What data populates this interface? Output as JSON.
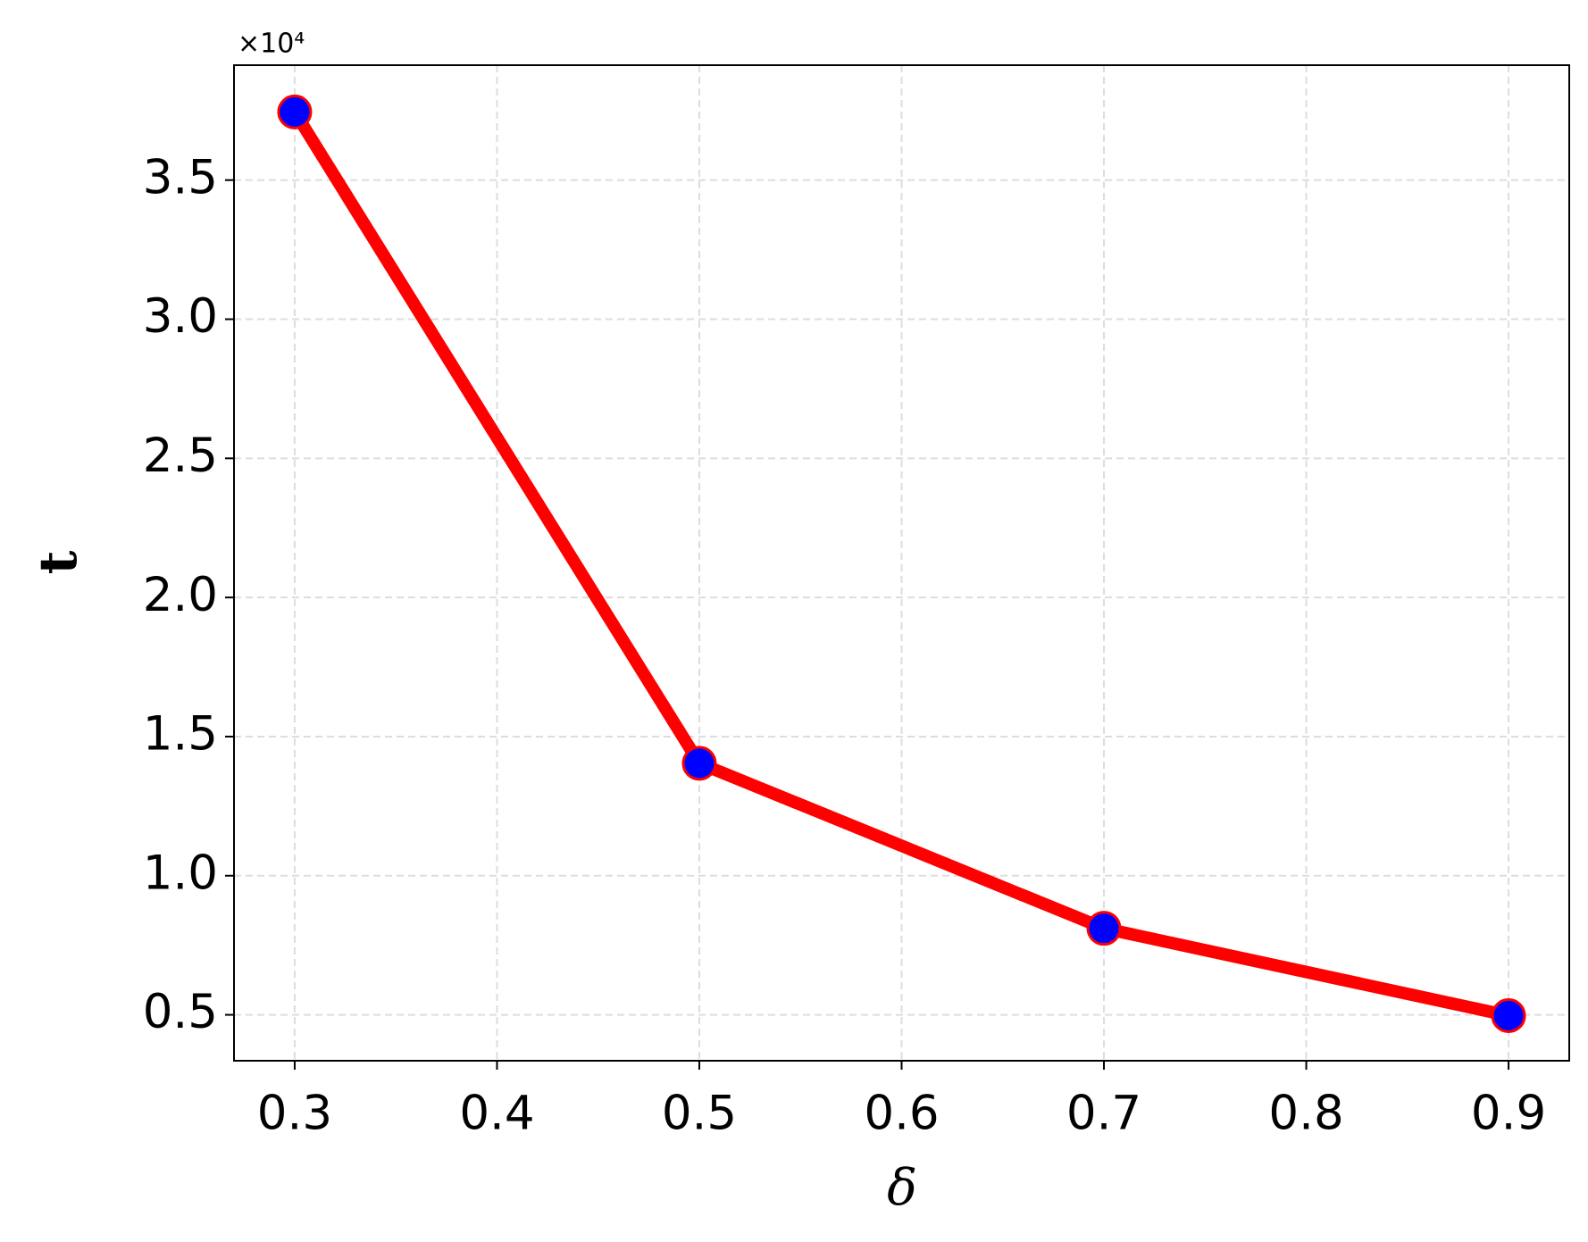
{
  "chart_data": {
    "type": "line",
    "x": [
      0.3,
      0.5,
      0.7,
      0.9
    ],
    "series": [
      {
        "name": "t",
        "color": "#ff0000",
        "marker_color": "#0000ff",
        "values": [
          3.745,
          1.404,
          0.811,
          0.497
        ]
      }
    ],
    "xlabel": "δ",
    "ylabel": "t",
    "y_offset_text": "×10⁴",
    "xlim": [
      0.27,
      0.93
    ],
    "ylim": [
      0.335,
      3.913
    ],
    "xticks": [
      0.3,
      0.4,
      0.5,
      0.6,
      0.7,
      0.8,
      0.9
    ],
    "yticks": [
      0.5,
      {
        "value": 1,
        "label": "1.0"
      },
      1.5,
      {
        "value": 2,
        "label": "2.0"
      },
      2.5,
      {
        "value": 3,
        "label": "3.0"
      },
      3.5
    ],
    "grid": true
  }
}
